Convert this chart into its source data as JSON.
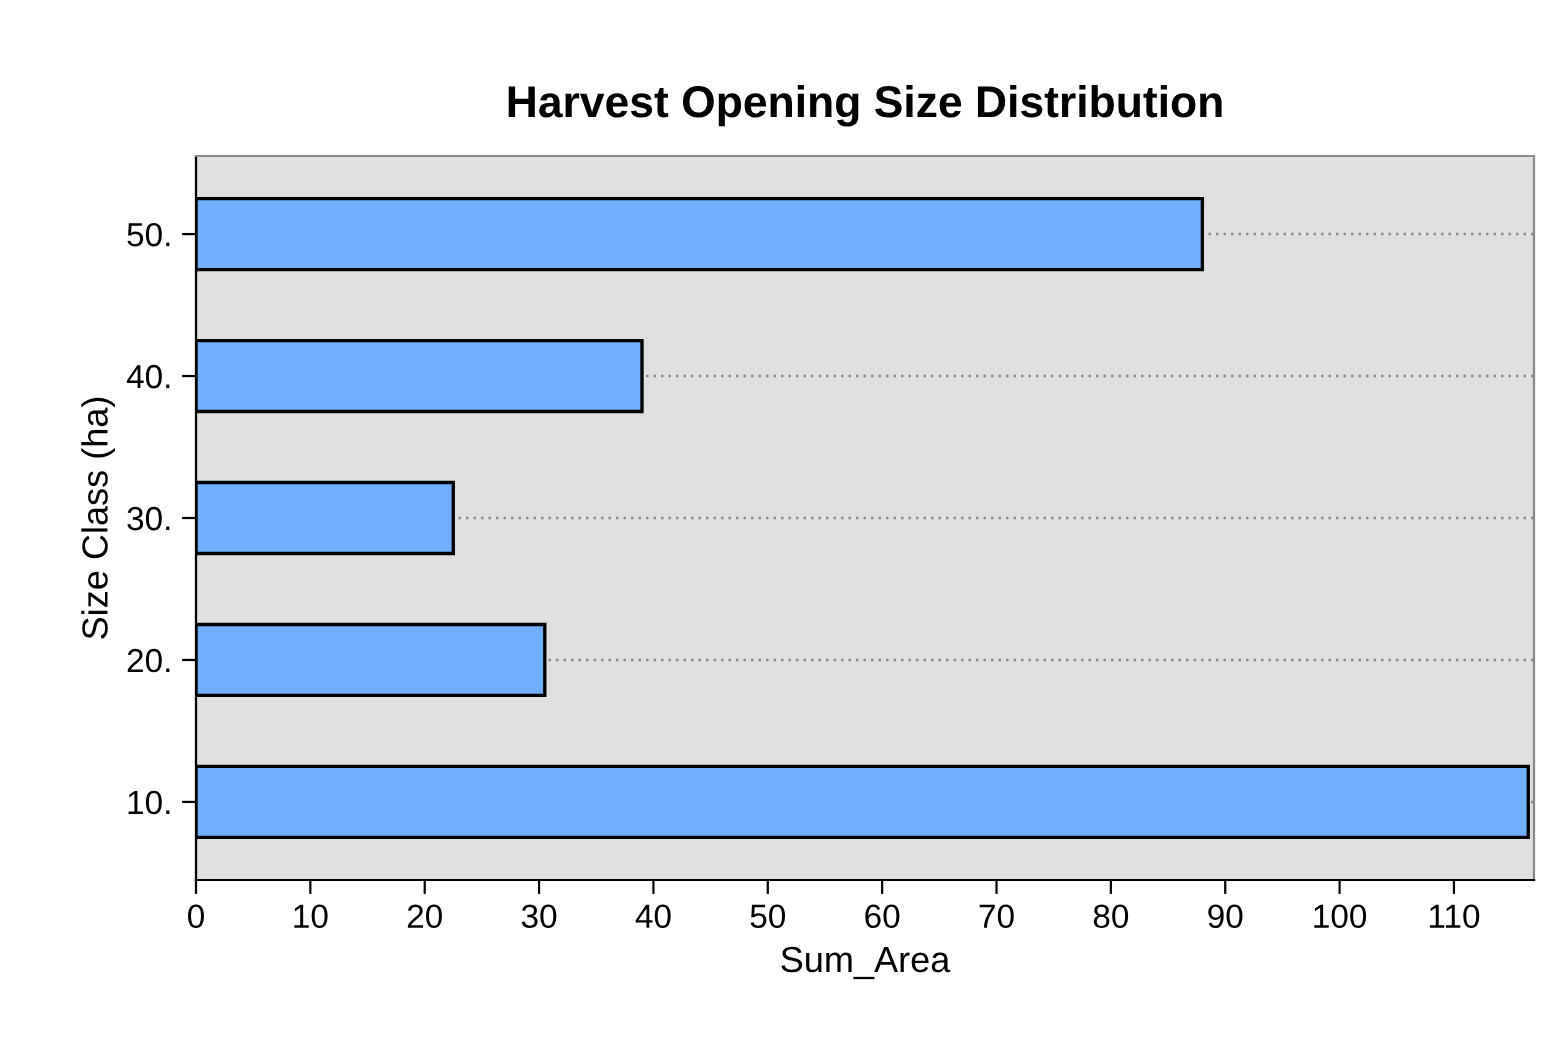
{
  "chart_data": {
    "type": "bar",
    "orientation": "horizontal",
    "title": "Harvest Opening Size Distribution",
    "xlabel": "Sum_Area",
    "ylabel": "Size Class (ha)",
    "categories": [
      "50.",
      "40.",
      "30.",
      "20.",
      "10."
    ],
    "values": [
      88,
      39,
      22.5,
      30.5,
      116.5
    ],
    "color": "#70b0ff",
    "xlim": [
      0,
      117
    ],
    "xticks": [
      0,
      10,
      20,
      30,
      40,
      50,
      60,
      70,
      80,
      90,
      100,
      110
    ],
    "grid": "y"
  }
}
